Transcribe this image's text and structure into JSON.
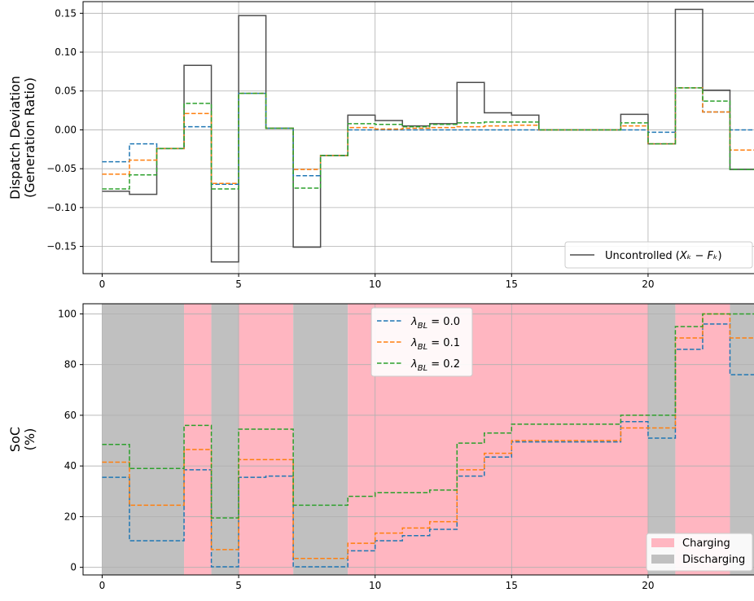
{
  "chart_data": [
    {
      "type": "line",
      "drawstyle": "steps-post",
      "ylabel_line1": "Dispatch Deviation",
      "ylabel_line2": "(Generation Ratio)",
      "xlim": [
        -0.7,
        24
      ],
      "ylim": [
        -0.185,
        0.165
      ],
      "xticks": [
        0,
        5,
        10,
        15,
        20
      ],
      "yticks": [
        -0.15,
        -0.1,
        -0.05,
        0.0,
        0.05,
        0.1,
        0.15
      ],
      "ytick_labels": [
        "−0.15",
        "−0.10",
        "−0.05",
        "0.00",
        "0.05",
        "0.10",
        "0.15"
      ],
      "grid": true,
      "legend_position": "lower-right",
      "series": [
        {
          "name": "Uncontrolled (X_k − F_k)",
          "color": "#4d4d4d",
          "style": "solid",
          "values": [
            -0.079,
            -0.083,
            -0.024,
            0.083,
            -0.17,
            0.147,
            0.002,
            -0.151,
            -0.033,
            0.019,
            0.012,
            0.005,
            0.008,
            0.061,
            0.022,
            0.019,
            0.0,
            0.0,
            0.0,
            0.02,
            -0.018,
            0.155,
            0.051,
            -0.051
          ]
        },
        {
          "name": "λ_BL = 0.0",
          "color": "#1f77b4",
          "style": "dashed",
          "values": [
            -0.041,
            -0.018,
            -0.024,
            0.004,
            -0.07,
            0.047,
            0.002,
            -0.059,
            -0.033,
            0.0,
            0.0,
            0.0,
            0.0,
            0.0,
            0.0,
            0.0,
            0.0,
            0.0,
            0.0,
            0.0,
            -0.003,
            0.054,
            0.023,
            0.0
          ]
        },
        {
          "name": "λ_BL = 0.1",
          "color": "#ff7f0e",
          "style": "dashed",
          "values": [
            -0.057,
            -0.039,
            -0.024,
            0.021,
            -0.069,
            0.047,
            0.002,
            -0.051,
            -0.033,
            0.003,
            0.001,
            0.002,
            0.003,
            0.004,
            0.005,
            0.006,
            0.0,
            0.0,
            0.0,
            0.005,
            -0.018,
            0.054,
            0.023,
            -0.026
          ]
        },
        {
          "name": "λ_BL = 0.2",
          "color": "#2ca02c",
          "style": "dashed",
          "values": [
            -0.076,
            -0.058,
            -0.024,
            0.034,
            -0.076,
            0.047,
            0.002,
            -0.075,
            -0.033,
            0.008,
            0.007,
            0.004,
            0.007,
            0.009,
            0.01,
            0.01,
            0.0,
            0.0,
            0.0,
            0.009,
            -0.018,
            0.054,
            0.037,
            -0.051
          ]
        }
      ],
      "legend": [
        {
          "label_prefix": "Uncontrolled (",
          "label_math": "Xₖ − Fₖ",
          "label_suffix": ")",
          "color": "#4d4d4d"
        }
      ]
    },
    {
      "type": "line",
      "drawstyle": "steps-post",
      "ylabel_line1": "SoC",
      "ylabel_line2": "(%)",
      "xlim": [
        -0.7,
        24
      ],
      "ylim": [
        -3,
        104
      ],
      "xticks": [
        0,
        5,
        10,
        15,
        20
      ],
      "yticks": [
        0,
        20,
        40,
        60,
        80,
        100
      ],
      "grid": true,
      "regions": [
        {
          "x0": 0,
          "x1": 3,
          "mode": "Discharging"
        },
        {
          "x0": 3,
          "x1": 4,
          "mode": "Charging"
        },
        {
          "x0": 4,
          "x1": 5,
          "mode": "Discharging"
        },
        {
          "x0": 5,
          "x1": 7,
          "mode": "Charging"
        },
        {
          "x0": 7,
          "x1": 9,
          "mode": "Discharging"
        },
        {
          "x0": 9,
          "x1": 20,
          "mode": "Charging"
        },
        {
          "x0": 20,
          "x1": 21,
          "mode": "Discharging"
        },
        {
          "x0": 21,
          "x1": 23,
          "mode": "Charging"
        },
        {
          "x0": 23,
          "x1": 24,
          "mode": "Discharging"
        }
      ],
      "region_colors": {
        "Charging": "#ffb6c1",
        "Discharging": "#c0c0c0"
      },
      "series": [
        {
          "name": "λ_BL = 0.0",
          "color": "#1f77b4",
          "values": [
            35.5,
            10.5,
            10.5,
            38.5,
            0.2,
            35.5,
            36,
            0.2,
            0.2,
            6.5,
            10.5,
            12.5,
            15,
            36,
            43.5,
            49.5,
            49.5,
            49.5,
            49.5,
            57.5,
            51,
            86,
            96,
            76
          ]
        },
        {
          "name": "λ_BL = 0.1",
          "color": "#ff7f0e",
          "values": [
            41.5,
            24.5,
            24.5,
            46.5,
            7,
            42.5,
            42.5,
            3.5,
            3.5,
            9.5,
            13.5,
            15.5,
            18,
            38.5,
            45,
            50,
            50,
            50,
            50,
            55,
            55,
            90.5,
            100,
            90.5
          ]
        },
        {
          "name": "λ_BL = 0.2",
          "color": "#2ca02c",
          "values": [
            48.5,
            39,
            39,
            56,
            19.5,
            54.5,
            54.5,
            24.5,
            24.5,
            28,
            29.5,
            29.5,
            30.5,
            49,
            53,
            56.5,
            56.5,
            56.5,
            56.5,
            60,
            60,
            95,
            100,
            100
          ]
        }
      ],
      "legend_lines": [
        {
          "label": "λ_BL = 0.0",
          "math": "λ",
          "sub": "BL",
          "rest": " = 0.0",
          "color": "#1f77b4"
        },
        {
          "label": "λ_BL = 0.1",
          "math": "λ",
          "sub": "BL",
          "rest": " = 0.1",
          "color": "#ff7f0e"
        },
        {
          "label": "λ_BL = 0.2",
          "math": "λ",
          "sub": "BL",
          "rest": " = 0.2",
          "color": "#2ca02c"
        }
      ],
      "legend_lines_position": "top-center",
      "legend_regions": [
        {
          "label": "Charging",
          "color": "#ffb6c1"
        },
        {
          "label": "Discharging",
          "color": "#c0c0c0"
        }
      ],
      "legend_regions_position": "lower-right"
    }
  ]
}
